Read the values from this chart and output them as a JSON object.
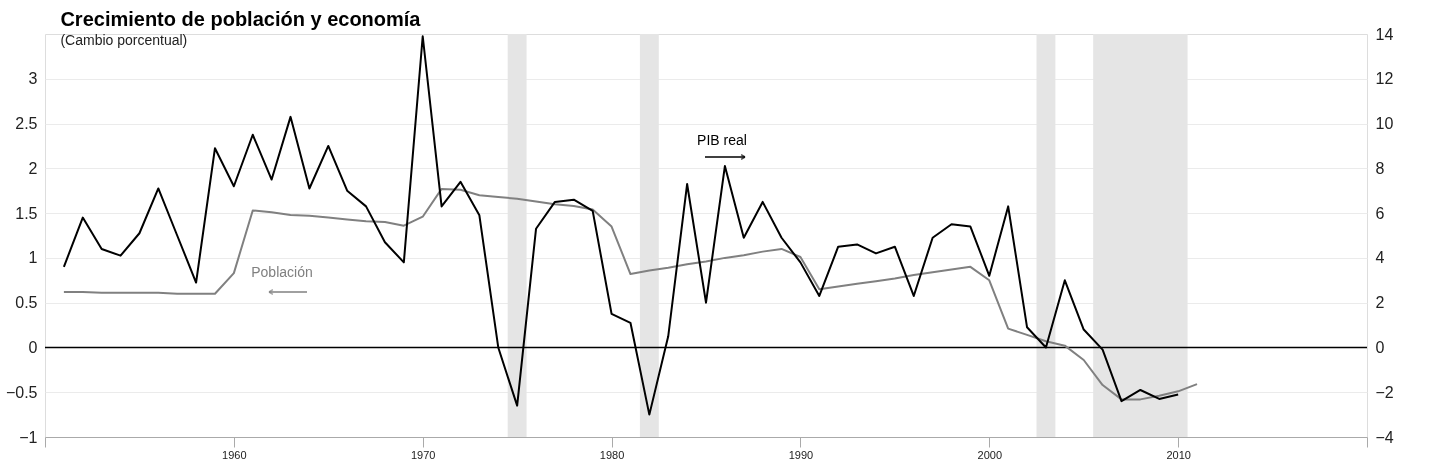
{
  "chart_data": {
    "type": "line",
    "title": "Crecimiento de población y economía",
    "subtitle": "(Cambio porcentual)",
    "x": [
      1951,
      1952,
      1953,
      1954,
      1955,
      1956,
      1957,
      1958,
      1959,
      1960,
      1961,
      1962,
      1963,
      1964,
      1965,
      1966,
      1967,
      1968,
      1969,
      1970,
      1971,
      1972,
      1973,
      1974,
      1975,
      1976,
      1977,
      1978,
      1979,
      1980,
      1981,
      1982,
      1983,
      1984,
      1985,
      1986,
      1987,
      1988,
      1989,
      1990,
      1991,
      1992,
      1993,
      1994,
      1995,
      1996,
      1997,
      1998,
      1999,
      2000,
      2001,
      2002,
      2003,
      2004,
      2005,
      2006,
      2007,
      2008,
      2009,
      2010,
      2011
    ],
    "series": [
      {
        "name": "Población",
        "color": "#808080",
        "axis": "y",
        "values": [
          0.62,
          0.62,
          0.61,
          0.61,
          0.61,
          0.61,
          0.6,
          0.6,
          0.6,
          0.83,
          1.53,
          1.51,
          1.48,
          1.47,
          1.45,
          1.43,
          1.41,
          1.4,
          1.36,
          1.46,
          1.77,
          1.76,
          1.7,
          1.68,
          1.66,
          1.63,
          1.6,
          1.58,
          1.54,
          1.35,
          0.82,
          0.86,
          0.89,
          0.93,
          0.96,
          1.0,
          1.03,
          1.07,
          1.1,
          1.01,
          0.65,
          0.68,
          0.71,
          0.74,
          0.77,
          0.81,
          0.84,
          0.87,
          0.9,
          0.75,
          0.21,
          0.14,
          0.07,
          0.02,
          -0.14,
          -0.42,
          -0.58,
          -0.58,
          -0.54,
          -0.49,
          -0.41
        ]
      },
      {
        "name": "PIB real",
        "color": "#000000",
        "axis": "y2",
        "values": [
          3.6,
          5.8,
          4.4,
          4.1,
          5.1,
          7.1,
          5.0,
          2.9,
          8.9,
          7.2,
          9.5,
          7.5,
          10.3,
          7.1,
          9.0,
          7.0,
          6.3,
          4.7,
          3.8,
          13.9,
          6.3,
          7.4,
          5.9,
          0.0,
          -2.6,
          5.3,
          6.5,
          6.6,
          6.1,
          1.5,
          1.1,
          -3.0,
          0.5,
          7.3,
          2.0,
          8.1,
          4.9,
          6.5,
          4.9,
          3.8,
          2.3,
          4.5,
          4.6,
          4.2,
          4.5,
          2.3,
          4.9,
          5.5,
          5.4,
          3.2,
          6.3,
          0.9,
          0.0,
          3.0,
          0.8,
          -0.1,
          -2.4,
          -1.9,
          -2.3,
          -2.1,
          null
        ]
      }
    ],
    "xlim": [
      1950,
      2020
    ],
    "xticks": [
      {
        "value": 1950,
        "label": null
      },
      1960,
      1970,
      1980,
      1990,
      2000,
      2010,
      {
        "value": 2020,
        "label": null
      }
    ],
    "ylim": [
      -1,
      3.5
    ],
    "yticks": [
      -1,
      -0.5,
      0,
      0.5,
      1,
      1.5,
      2,
      2.5,
      3
    ],
    "y2lim": [
      -4,
      14
    ],
    "y2ticks": [
      -4,
      -2,
      0,
      2,
      4,
      6,
      8,
      10,
      12,
      14
    ],
    "ref_lines": [
      {
        "axis": "y",
        "value": 0,
        "color": "#000000"
      }
    ],
    "bands": [
      {
        "axis": "x",
        "from": 1974.5,
        "to": 1975.5,
        "color": "#e5e5e5"
      },
      {
        "axis": "x",
        "from": 1981.5,
        "to": 1982.5,
        "color": "#e5e5e5"
      },
      {
        "axis": "x",
        "from": 2002.5,
        "to": 2003.5,
        "color": "#e5e5e5"
      },
      {
        "axis": "x",
        "from": 2005.5,
        "to": 2010.5,
        "color": "#e5e5e5"
      }
    ],
    "grid": "y"
  }
}
